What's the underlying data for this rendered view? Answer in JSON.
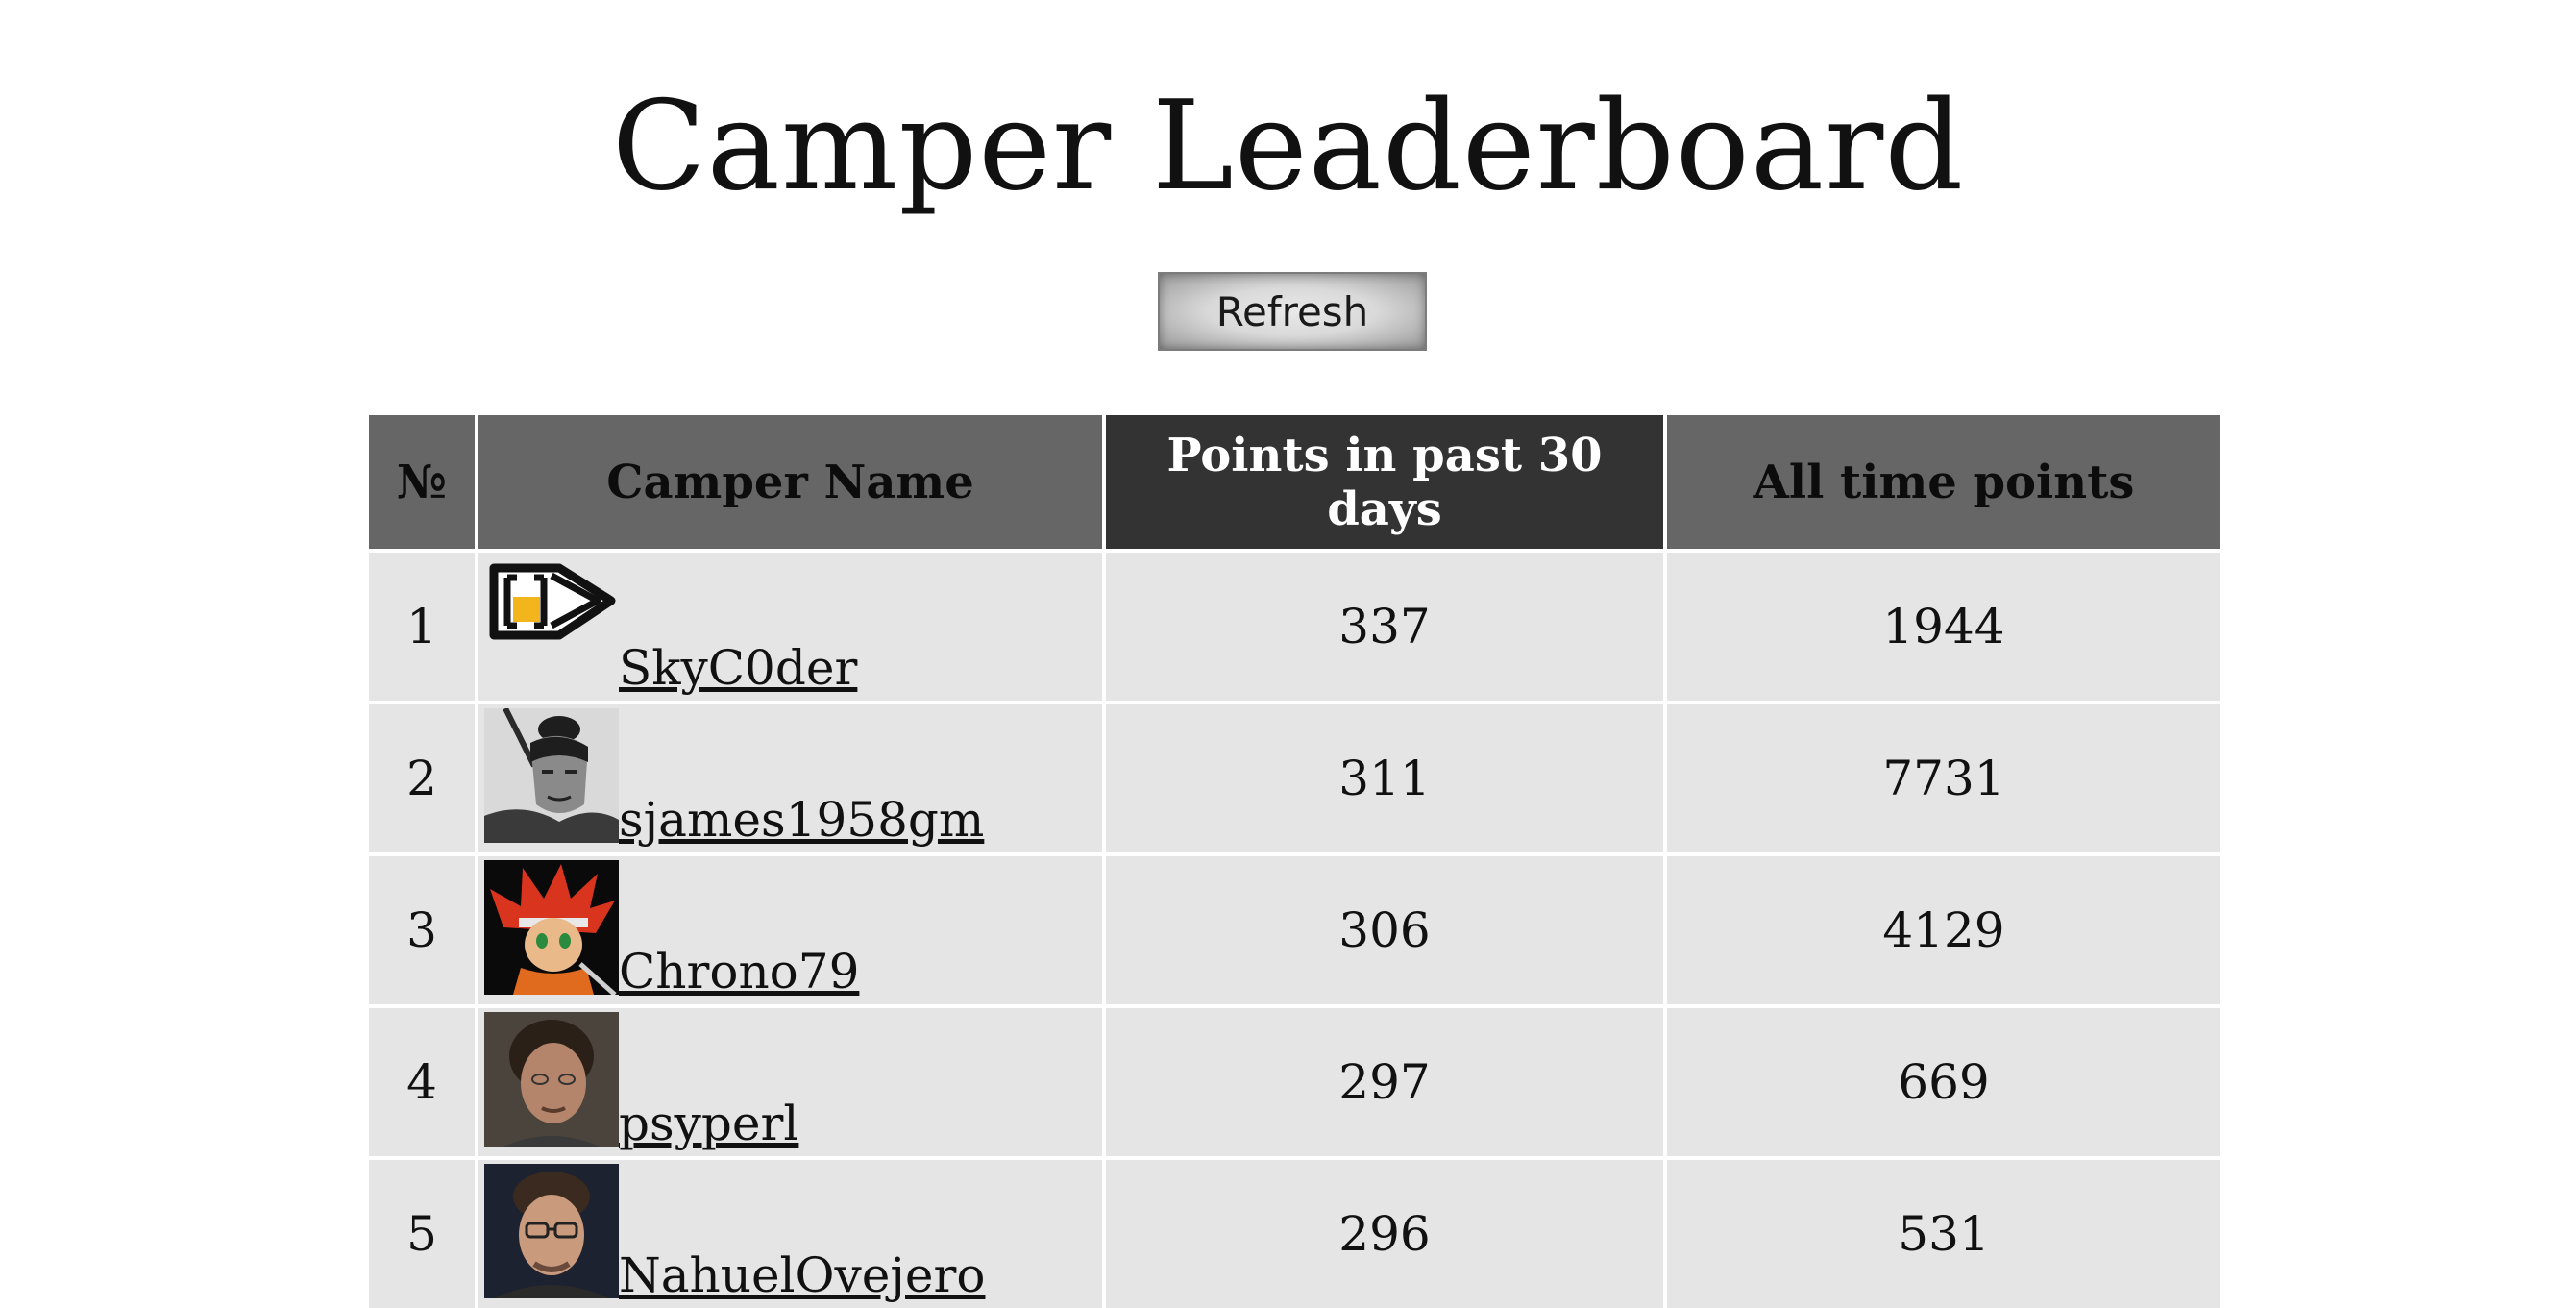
{
  "page": {
    "title": "Camper Leaderboard"
  },
  "toolbar": {
    "refresh_label": "Refresh"
  },
  "table": {
    "headers": {
      "rank": "№",
      "name": "Camper Name",
      "recent": "Points in past 30 days",
      "alltime": "All time points"
    },
    "active_sort": "recent",
    "rows": [
      {
        "rank": "1",
        "name": "SkyC0der",
        "recent": "337",
        "alltime": "1944",
        "avatar": "logo-avatar"
      },
      {
        "rank": "2",
        "name": "sjames1958gm",
        "recent": "311",
        "alltime": "7731",
        "avatar": "samurai-photo-avatar"
      },
      {
        "rank": "3",
        "name": "Chrono79",
        "recent": "306",
        "alltime": "4129",
        "avatar": "anime-character-avatar"
      },
      {
        "rank": "4",
        "name": "psyperl",
        "recent": "297",
        "alltime": "669",
        "avatar": "person-photo-avatar"
      },
      {
        "rank": "5",
        "name": "NahuelOvejero",
        "recent": "296",
        "alltime": "531",
        "avatar": "person-glasses-photo-avatar"
      }
    ]
  },
  "colors": {
    "header_bg": "#666666",
    "active_header_bg": "#333333",
    "row_bg": "#e5e5e5",
    "page_bg": "#ffffff"
  }
}
